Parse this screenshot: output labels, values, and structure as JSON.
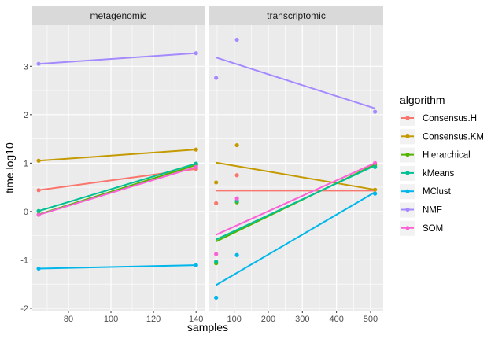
{
  "chart_data": {
    "type": "scatter",
    "xlabel": "samples",
    "ylabel": "time.log10",
    "ylim": [
      -2.05,
      3.85
    ],
    "y_ticks": [
      -2,
      -1,
      0,
      1,
      2,
      3
    ],
    "legend_title": "algorithm",
    "legend_position": "right",
    "grid": true,
    "colors": {
      "Consensus.H": "#F8766D",
      "Consensus.KM": "#C49A00",
      "Hierarchical": "#53B400",
      "kMeans": "#00C094",
      "MClust": "#00B6EB",
      "NMF": "#A58AFF",
      "SOM": "#FB61D7"
    },
    "series_names": [
      "Consensus.H",
      "Consensus.KM",
      "Hierarchical",
      "kMeans",
      "MClust",
      "NMF",
      "SOM"
    ],
    "panels": [
      {
        "strip": "metagenomic",
        "xlim": [
          63,
          144
        ],
        "x_ticks": [
          80,
          100,
          120,
          140
        ],
        "points": {
          "Consensus.H": [
            [
              66,
              0.44
            ],
            [
              140,
              0.88
            ]
          ],
          "Consensus.KM": [
            [
              66,
              1.05
            ],
            [
              140,
              1.28
            ]
          ],
          "Hierarchical": [
            [
              66,
              -0.06
            ],
            [
              140,
              0.96
            ]
          ],
          "kMeans": [
            [
              66,
              0.01
            ],
            [
              140,
              0.99
            ]
          ],
          "MClust": [
            [
              66,
              -1.18
            ],
            [
              140,
              -1.11
            ]
          ],
          "NMF": [
            [
              66,
              3.05
            ],
            [
              140,
              3.27
            ]
          ],
          "SOM": [
            [
              66,
              -0.07
            ],
            [
              140,
              0.92
            ]
          ]
        },
        "lines": {
          "Consensus.H": [
            [
              66,
              0.44
            ],
            [
              140,
              0.88
            ]
          ],
          "Consensus.KM": [
            [
              66,
              1.05
            ],
            [
              140,
              1.28
            ]
          ],
          "Hierarchical": [
            [
              66,
              -0.06
            ],
            [
              140,
              0.96
            ]
          ],
          "kMeans": [
            [
              66,
              0.01
            ],
            [
              140,
              0.99
            ]
          ],
          "MClust": [
            [
              66,
              -1.18
            ],
            [
              140,
              -1.11
            ]
          ],
          "NMF": [
            [
              66,
              3.05
            ],
            [
              140,
              3.27
            ]
          ],
          "SOM": [
            [
              66,
              -0.07
            ],
            [
              140,
              0.92
            ]
          ]
        }
      },
      {
        "strip": "transcriptomic",
        "xlim": [
          27,
          537
        ],
        "x_ticks": [
          100,
          200,
          300,
          400,
          500
        ],
        "points": {
          "Consensus.H": [
            [
              47,
              0.17
            ],
            [
              108,
              0.75
            ],
            [
              513,
              0.93
            ]
          ],
          "Consensus.KM": [
            [
              47,
              0.6
            ],
            [
              108,
              1.37
            ],
            [
              513,
              0.45
            ]
          ],
          "Hierarchical": [
            [
              47,
              -1.07
            ],
            [
              108,
              0.19
            ],
            [
              513,
              0.97
            ]
          ],
          "kMeans": [
            [
              47,
              -1.04
            ],
            [
              108,
              0.22
            ],
            [
              513,
              0.92
            ]
          ],
          "MClust": [
            [
              47,
              -1.78
            ],
            [
              108,
              -0.9
            ],
            [
              513,
              0.37
            ]
          ],
          "NMF": [
            [
              47,
              2.76
            ],
            [
              108,
              3.55
            ],
            [
              513,
              2.06
            ]
          ],
          "SOM": [
            [
              47,
              -0.88
            ],
            [
              108,
              0.27
            ],
            [
              513,
              1.0
            ]
          ]
        },
        "lines": {
          "Consensus.H": [
            [
              47,
              0.43
            ],
            [
              513,
              0.43
            ]
          ],
          "Consensus.KM": [
            [
              47,
              1.01
            ],
            [
              513,
              0.45
            ]
          ],
          "Hierarchical": [
            [
              47,
              -0.62
            ],
            [
              513,
              0.97
            ]
          ],
          "kMeans": [
            [
              47,
              -0.58
            ],
            [
              513,
              0.95
            ]
          ],
          "MClust": [
            [
              47,
              -1.52
            ],
            [
              513,
              0.4
            ]
          ],
          "NMF": [
            [
              47,
              3.18
            ],
            [
              513,
              2.13
            ]
          ],
          "SOM": [
            [
              47,
              -0.48
            ],
            [
              513,
              1.0
            ]
          ]
        }
      }
    ]
  }
}
